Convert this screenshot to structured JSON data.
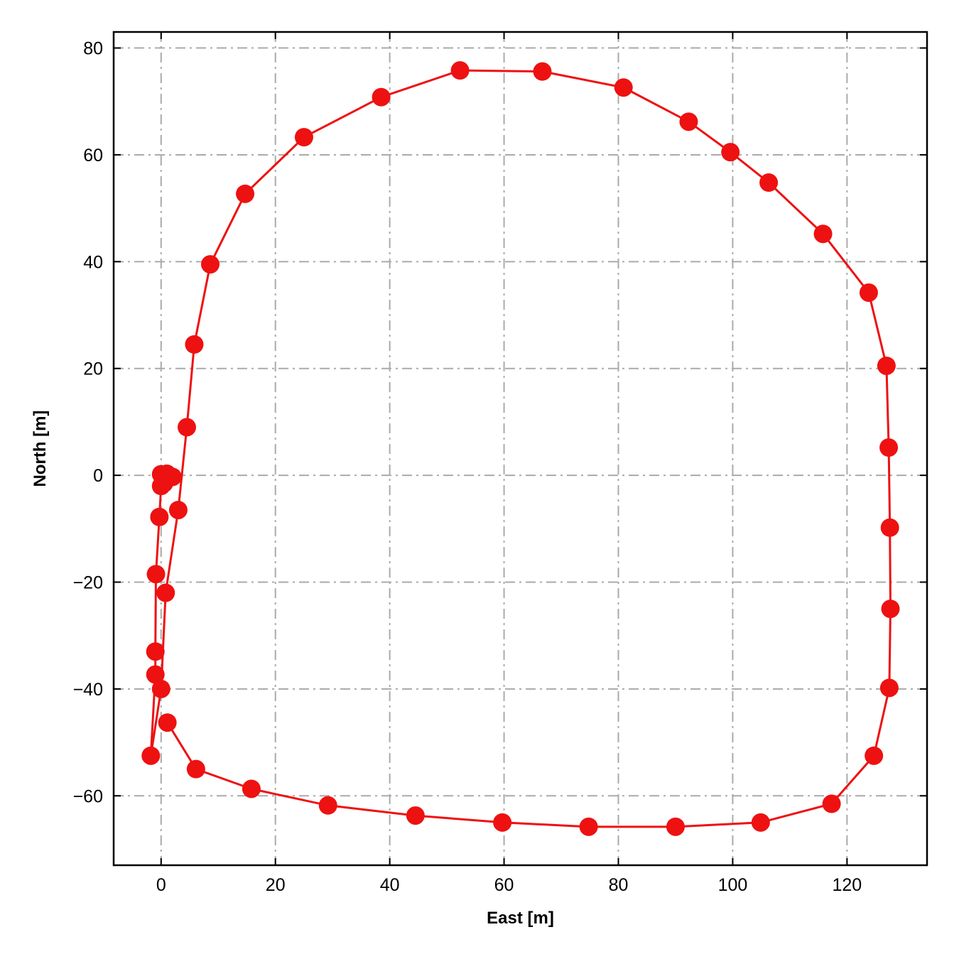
{
  "chart_data": {
    "type": "line",
    "title": "",
    "xlabel": "East [m]",
    "ylabel": "North [m]",
    "xlim": [
      -8.3,
      134
    ],
    "ylim": [
      -73,
      83
    ],
    "xticks": [
      0,
      20,
      40,
      60,
      80,
      100,
      120
    ],
    "yticks": [
      -60,
      -40,
      -20,
      0,
      20,
      40,
      60,
      80
    ],
    "xtick_labels": [
      "0",
      "20",
      "40",
      "60",
      "80",
      "100",
      "120"
    ],
    "ytick_labels": [
      "−60",
      "−40",
      "−20",
      "0",
      "20",
      "40",
      "60",
      "80"
    ],
    "grid": true,
    "legend": "none",
    "series": [
      {
        "color": "#ee1111",
        "marker": "circle",
        "points": [
          [
            0.0,
            0.2
          ],
          [
            1.0,
            0.3
          ],
          [
            2.0,
            -0.3
          ],
          [
            0.5,
            -1.5
          ],
          [
            0.0,
            -2.0
          ],
          [
            -0.3,
            -7.8
          ],
          [
            -0.9,
            -18.5
          ],
          [
            -1.0,
            -33.0
          ],
          [
            -1.0,
            -37.3
          ],
          [
            -1.8,
            -52.5
          ],
          [
            0.0,
            -40.0
          ],
          [
            0.8,
            -22.0
          ],
          [
            3.0,
            -6.5
          ],
          [
            4.5,
            9.0
          ],
          [
            5.8,
            24.5
          ],
          [
            8.6,
            39.5
          ],
          [
            14.7,
            52.7
          ],
          [
            25.0,
            63.3
          ],
          [
            38.5,
            70.8
          ],
          [
            52.3,
            75.8
          ],
          [
            66.7,
            75.6
          ],
          [
            80.9,
            72.6
          ],
          [
            92.3,
            66.2
          ],
          [
            99.6,
            60.5
          ],
          [
            106.3,
            54.8
          ],
          [
            115.8,
            45.2
          ],
          [
            123.8,
            34.2
          ],
          [
            126.9,
            20.5
          ],
          [
            127.3,
            5.2
          ],
          [
            127.5,
            -9.8
          ],
          [
            127.6,
            -25.0
          ],
          [
            127.4,
            -39.8
          ],
          [
            124.7,
            -52.5
          ],
          [
            117.3,
            -61.5
          ],
          [
            104.9,
            -65.0
          ],
          [
            90.0,
            -65.8
          ],
          [
            74.8,
            -65.8
          ],
          [
            59.7,
            -65.0
          ],
          [
            44.5,
            -63.7
          ],
          [
            29.2,
            -61.8
          ],
          [
            15.8,
            -58.7
          ],
          [
            6.1,
            -55.0
          ],
          [
            1.1,
            -46.3
          ]
        ]
      }
    ]
  }
}
